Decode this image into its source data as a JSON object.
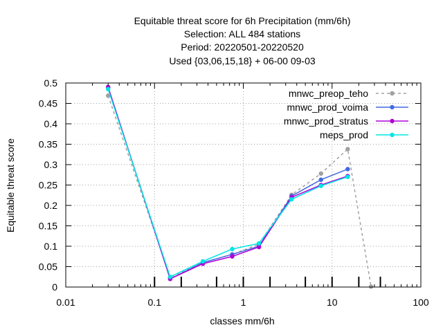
{
  "chart_data": {
    "type": "line",
    "title_lines": [
      "Equitable threat score  for 6h Precipitation (mm/6h)",
      "Selection: ALL     484 stations",
      "Period: 20220501-20220520",
      "Used {03,06,15,18} + 06-00 09-03"
    ],
    "xlabel": "classes mm/6h",
    "ylabel": "Equitable threat score",
    "x_scale": "log",
    "xlim": [
      0.01,
      100
    ],
    "ylim": [
      0,
      0.5
    ],
    "x_ticks": [
      0.01,
      0.1,
      1,
      10,
      100
    ],
    "x_tick_labels": [
      "0.01",
      "0.1",
      "1",
      "10",
      "100"
    ],
    "y_ticks": [
      0,
      0.05,
      0.1,
      0.15,
      0.2,
      0.25,
      0.3,
      0.35,
      0.4,
      0.45,
      0.5
    ],
    "y_tick_labels": [
      "0",
      "0.05",
      "0.1",
      "0.15",
      "0.2",
      "0.25",
      "0.3",
      "0.35",
      "0.4",
      "0.45",
      "0.5"
    ],
    "class_thresholds": [
      0.1,
      0.2,
      0.5,
      1,
      2,
      5,
      10,
      20,
      35
    ],
    "grid": true,
    "legend_position": "top-right",
    "series": [
      {
        "name": "mnwc_preop_teho",
        "color": "#a0a0a0",
        "dashed": true,
        "x": [
          0.03,
          0.15,
          0.35,
          0.75,
          1.5,
          3.5,
          7.5,
          15,
          27.5
        ],
        "values": [
          0.469,
          0.024,
          0.06,
          0.08,
          0.105,
          0.226,
          0.278,
          0.338,
          0.001
        ]
      },
      {
        "name": "mnwc_prod_voima",
        "color": "#4169e1",
        "dashed": false,
        "x": [
          0.03,
          0.15,
          0.35,
          0.75,
          1.5,
          3.5,
          7.5,
          15
        ],
        "values": [
          0.49,
          0.02,
          0.06,
          0.08,
          0.1,
          0.223,
          0.263,
          0.289
        ]
      },
      {
        "name": "mnwc_prod_stratus",
        "color": "#b000d8",
        "dashed": false,
        "x": [
          0.03,
          0.15,
          0.35,
          0.75,
          1.5,
          3.5,
          7.5,
          15
        ],
        "values": [
          0.49,
          0.02,
          0.057,
          0.075,
          0.098,
          0.22,
          0.25,
          0.272
        ]
      },
      {
        "name": "meps_prod",
        "color": "#00e5e5",
        "dashed": false,
        "x": [
          0.03,
          0.15,
          0.35,
          0.75,
          1.5,
          3.5,
          7.5,
          15
        ],
        "values": [
          0.485,
          0.025,
          0.063,
          0.093,
          0.107,
          0.215,
          0.248,
          0.27
        ]
      }
    ]
  }
}
